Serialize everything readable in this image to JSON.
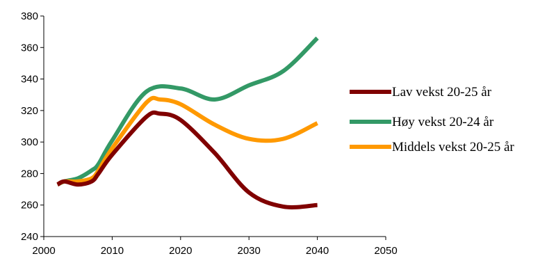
{
  "chart_data": {
    "type": "line",
    "title": "",
    "xlabel": "",
    "ylabel": "",
    "xlim": [
      2000,
      2050
    ],
    "ylim": [
      240,
      380
    ],
    "x_ticks": [
      2000,
      2010,
      2020,
      2030,
      2040,
      2050
    ],
    "y_ticks": [
      240,
      260,
      280,
      300,
      320,
      340,
      360,
      380
    ],
    "grid": false,
    "legend_position": "right",
    "series": [
      {
        "name": "Lav vekst 20-25 år",
        "color": "#800000",
        "x": [
          2002,
          2003,
          2005,
          2007,
          2008,
          2010,
          2015,
          2017,
          2020,
          2025,
          2030,
          2035,
          2040
        ],
        "y": [
          273,
          275,
          273,
          275,
          280,
          292,
          316,
          318,
          314,
          293,
          268,
          259,
          260
        ]
      },
      {
        "name": "Høy vekst 20-24 år",
        "color": "#339966",
        "x": [
          2002,
          2003,
          2005,
          2007,
          2008,
          2010,
          2015,
          2020,
          2025,
          2030,
          2035,
          2040
        ],
        "y": [
          273,
          275,
          277,
          282,
          286,
          301,
          332,
          334,
          327,
          336,
          345,
          366
        ]
      },
      {
        "name": "Middels vekst 20-25 år",
        "color": "#FF9900",
        "x": [
          2002,
          2003,
          2005,
          2007,
          2008,
          2010,
          2015,
          2017,
          2020,
          2025,
          2030,
          2035,
          2040
        ],
        "y": [
          273,
          275,
          275,
          277,
          282,
          296,
          325,
          327,
          324,
          311,
          302,
          302,
          312
        ]
      }
    ]
  }
}
